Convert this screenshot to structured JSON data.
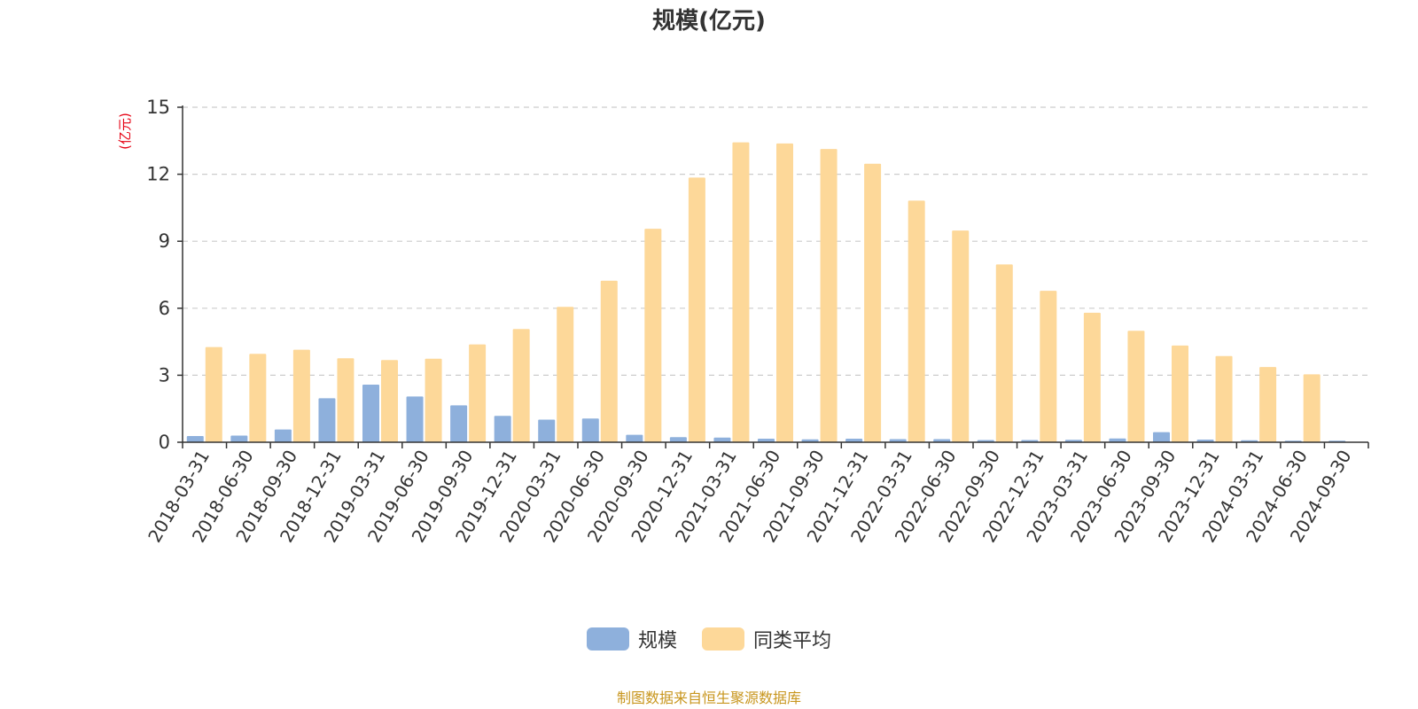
{
  "chart_data": {
    "type": "bar",
    "title": "规模(亿元)",
    "ylabel": "(亿元)",
    "xlabel": "",
    "ylim": [
      0,
      15
    ],
    "yticks": [
      0,
      3,
      6,
      9,
      12,
      15
    ],
    "grid": true,
    "legend_position": "bottom",
    "categories": [
      "2018-03-31",
      "2018-06-30",
      "2018-09-30",
      "2018-12-31",
      "2019-03-31",
      "2019-06-30",
      "2019-09-30",
      "2019-12-31",
      "2020-03-31",
      "2020-06-30",
      "2020-09-30",
      "2020-12-31",
      "2021-03-31",
      "2021-06-30",
      "2021-09-30",
      "2021-12-31",
      "2022-03-31",
      "2022-06-30",
      "2022-09-30",
      "2022-12-31",
      "2023-03-31",
      "2023-06-30",
      "2023-09-30",
      "2023-12-31",
      "2024-03-31",
      "2024-06-30",
      "2024-09-30"
    ],
    "series": [
      {
        "name": "规模",
        "color": "#8eb0dc",
        "values": [
          0.28,
          0.3,
          0.57,
          1.97,
          2.58,
          2.05,
          1.65,
          1.18,
          1.01,
          1.06,
          0.33,
          0.23,
          0.21,
          0.16,
          0.13,
          0.16,
          0.14,
          0.14,
          0.1,
          0.1,
          0.11,
          0.17,
          0.45,
          0.12,
          0.09,
          0.07,
          0.07
        ]
      },
      {
        "name": "同类平均",
        "color": "#fdd899",
        "values": [
          4.26,
          3.96,
          4.14,
          3.76,
          3.68,
          3.74,
          4.38,
          5.07,
          6.06,
          7.23,
          9.56,
          11.85,
          13.43,
          13.38,
          13.13,
          12.47,
          10.82,
          9.48,
          7.96,
          6.78,
          5.8,
          4.99,
          4.33,
          3.86,
          3.37,
          3.04,
          0
        ]
      }
    ]
  },
  "legend": {
    "items": [
      {
        "label": "规模",
        "color": "#8eb0dc"
      },
      {
        "label": "同类平均",
        "color": "#fdd899"
      }
    ]
  },
  "footer": {
    "source": "制图数据来自恒生聚源数据库",
    "color": "#c8961e"
  },
  "colors": {
    "axis": "#333333",
    "grid": "#cccccc",
    "ylabel": "#e60012"
  }
}
